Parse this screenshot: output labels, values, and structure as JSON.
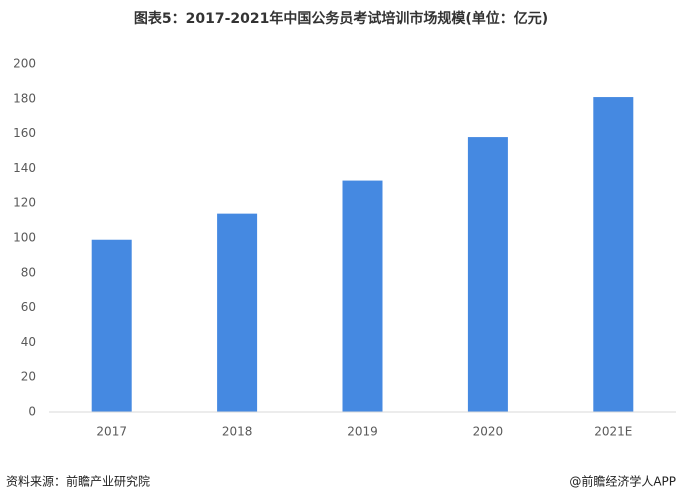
{
  "chart_data": {
    "type": "bar",
    "title": "图表5：2017-2021年中国公务员考试培训市场规模(单位：亿元)",
    "categories": [
      "2017",
      "2018",
      "2019",
      "2020",
      "2021E"
    ],
    "values": [
      99,
      114,
      133,
      158,
      181
    ],
    "color": "#4589e1",
    "ylim": [
      0,
      200
    ],
    "yticks": [
      0,
      20,
      40,
      60,
      80,
      100,
      120,
      140,
      160,
      180,
      200
    ],
    "grid": false,
    "source": "资料来源：前瞻产业研究院",
    "credit": "@前瞻经济学人APP"
  }
}
